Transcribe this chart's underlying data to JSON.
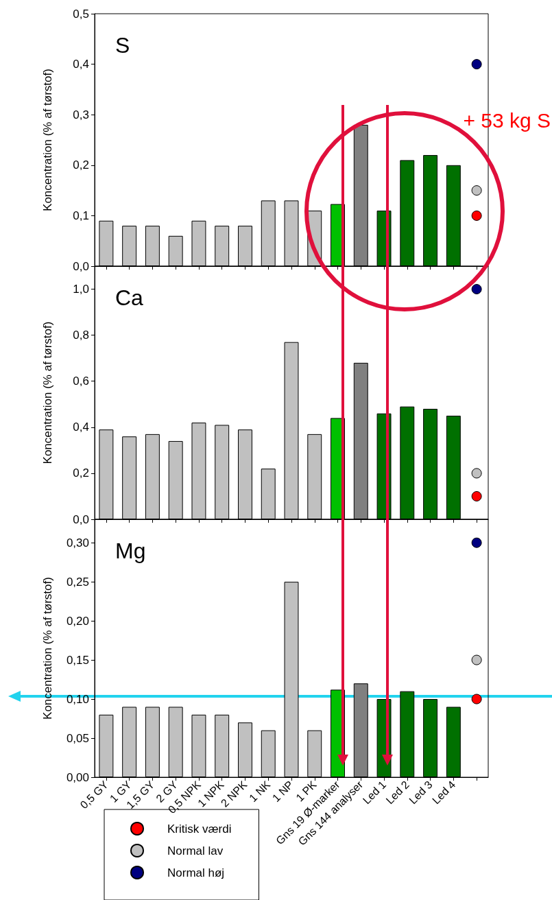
{
  "chart_data": [
    {
      "type": "bar",
      "title": "S",
      "ylabel": "Koncentration (% af tørstof)",
      "annotations": [
        "+ 53 kg S"
      ],
      "tick_labels": "y",
      "categories": [
        null,
        null,
        null,
        null,
        null,
        null,
        null,
        null,
        null,
        null,
        null,
        null,
        null,
        null,
        null,
        null,
        null
      ],
      "ylim": [
        0,
        0.5
      ],
      "yticks": [
        {
          "value": 0,
          "label": "0,0"
        },
        {
          "value": 0.1,
          "label": "0,1"
        },
        {
          "value": 0.2,
          "label": "0,2"
        },
        {
          "value": 0.3,
          "label": "0,3"
        },
        {
          "value": 0.4,
          "label": "0,4"
        },
        {
          "value": 0.5,
          "label": "0,5"
        }
      ],
      "series": [
        {
          "type": "bar",
          "colors": [
            "#c0c0c0",
            "#c0c0c0",
            "#c0c0c0",
            "#c0c0c0",
            "#c0c0c0",
            "#c0c0c0",
            "#c0c0c0",
            "#c0c0c0",
            "#c0c0c0",
            "#c0c0c0",
            "#00c000",
            "#808080",
            "#007000",
            "#007000",
            "#007000",
            "#007000",
            null
          ],
          "values": [
            0.09,
            0.08,
            0.08,
            0.06,
            0.09,
            0.08,
            0.08,
            0.13,
            0.13,
            0.11,
            0.123,
            0.28,
            0.11,
            0.21,
            0.22,
            0.2,
            null
          ]
        },
        {
          "type": "scatter",
          "color": "#ff0000",
          "values": [
            null,
            null,
            null,
            null,
            null,
            null,
            null,
            null,
            null,
            null,
            null,
            null,
            null,
            null,
            null,
            null,
            0.1
          ]
        },
        {
          "type": "scatter",
          "color": "#c0c0c0",
          "values": [
            null,
            null,
            null,
            null,
            null,
            null,
            null,
            null,
            null,
            null,
            null,
            null,
            null,
            null,
            null,
            null,
            0.15
          ]
        },
        {
          "type": "scatter",
          "color": "#000080",
          "values": [
            null,
            null,
            null,
            null,
            null,
            null,
            null,
            null,
            null,
            null,
            null,
            null,
            null,
            null,
            null,
            null,
            0.4
          ]
        }
      ]
    },
    {
      "type": "bar",
      "title": "Ca",
      "ylabel": "Koncentration (% af tørstof)",
      "tick_labels": "y",
      "categories": [
        null,
        null,
        null,
        null,
        null,
        null,
        null,
        null,
        null,
        null,
        null,
        null,
        null,
        null,
        null,
        null,
        null
      ],
      "ylim": [
        0,
        1.1
      ],
      "yticks": [
        {
          "value": 0,
          "label": "0,0"
        },
        {
          "value": 0.2,
          "label": "0,2"
        },
        {
          "value": 0.4,
          "label": "0,4"
        },
        {
          "value": 0.6,
          "label": "0,6"
        },
        {
          "value": 0.8,
          "label": "0,8"
        },
        {
          "value": 1,
          "label": "1,0"
        }
      ],
      "series": [
        {
          "type": "bar",
          "colors": [
            "#c0c0c0",
            "#c0c0c0",
            "#c0c0c0",
            "#c0c0c0",
            "#c0c0c0",
            "#c0c0c0",
            "#c0c0c0",
            "#c0c0c0",
            "#c0c0c0",
            "#c0c0c0",
            "#00c000",
            "#808080",
            "#007000",
            "#007000",
            "#007000",
            "#007000",
            null
          ],
          "values": [
            0.39,
            0.36,
            0.37,
            0.34,
            0.42,
            0.41,
            0.39,
            0.22,
            0.77,
            0.37,
            0.44,
            0.68,
            0.46,
            0.49,
            0.48,
            0.45,
            null
          ]
        },
        {
          "type": "scatter",
          "color": "#ff0000",
          "values": [
            null,
            null,
            null,
            null,
            null,
            null,
            null,
            null,
            null,
            null,
            null,
            null,
            null,
            null,
            null,
            null,
            0.1
          ]
        },
        {
          "type": "scatter",
          "color": "#c0c0c0",
          "values": [
            null,
            null,
            null,
            null,
            null,
            null,
            null,
            null,
            null,
            null,
            null,
            null,
            null,
            null,
            null,
            null,
            0.2
          ]
        },
        {
          "type": "scatter",
          "color": "#000080",
          "values": [
            null,
            null,
            null,
            null,
            null,
            null,
            null,
            null,
            null,
            null,
            null,
            null,
            null,
            null,
            null,
            null,
            1.0
          ]
        }
      ]
    },
    {
      "type": "bar",
      "title": "Mg",
      "ylabel": "Koncentration (% af tørstof)",
      "legend": "bottom left",
      "categories": [
        "0,5 GY",
        "1 GY",
        "1,5 GY",
        "2 GY",
        "0,5 NPK",
        "1 NPK",
        "2 NPK",
        "1 NK",
        "1 NP",
        "1 PK",
        "Gns 19 Ø-marker",
        "Gns 144 analyser",
        "Led 1",
        "Led 2",
        "Led 3",
        "Led 4",
        null
      ],
      "ylim": [
        0,
        0.33
      ],
      "yticks": [
        {
          "value": 0,
          "label": "0,00"
        },
        {
          "value": 0.05,
          "label": "0,05"
        },
        {
          "value": 0.1,
          "label": "0,10"
        },
        {
          "value": 0.15,
          "label": "0,15"
        },
        {
          "value": 0.2,
          "label": "0,20"
        },
        {
          "value": 0.25,
          "label": "0,25"
        },
        {
          "value": 0.3,
          "label": "0,30"
        }
      ],
      "series": [
        {
          "type": "bar",
          "colors": [
            "#c0c0c0",
            "#c0c0c0",
            "#c0c0c0",
            "#c0c0c0",
            "#c0c0c0",
            "#c0c0c0",
            "#c0c0c0",
            "#c0c0c0",
            "#c0c0c0",
            "#c0c0c0",
            "#00c000",
            "#808080",
            "#007000",
            "#007000",
            "#007000",
            "#007000",
            null
          ],
          "values": [
            0.08,
            0.09,
            0.09,
            0.09,
            0.08,
            0.08,
            0.07,
            0.06,
            0.25,
            0.06,
            0.112,
            0.12,
            0.1,
            0.11,
            0.1,
            0.09,
            null
          ]
        },
        {
          "type": "scatter",
          "name": "Kritisk værdi",
          "color": "#ff0000",
          "values": [
            null,
            null,
            null,
            null,
            null,
            null,
            null,
            null,
            null,
            null,
            null,
            null,
            null,
            null,
            null,
            null,
            0.1
          ]
        },
        {
          "type": "scatter",
          "name": "Normal lav",
          "color": "#c0c0c0",
          "values": [
            null,
            null,
            null,
            null,
            null,
            null,
            null,
            null,
            null,
            null,
            null,
            null,
            null,
            null,
            null,
            null,
            0.15
          ]
        },
        {
          "type": "scatter",
          "name": "Normal høj",
          "color": "#000080",
          "values": [
            null,
            null,
            null,
            null,
            null,
            null,
            null,
            null,
            null,
            null,
            null,
            null,
            null,
            null,
            null,
            null,
            0.3
          ]
        }
      ]
    }
  ]
}
